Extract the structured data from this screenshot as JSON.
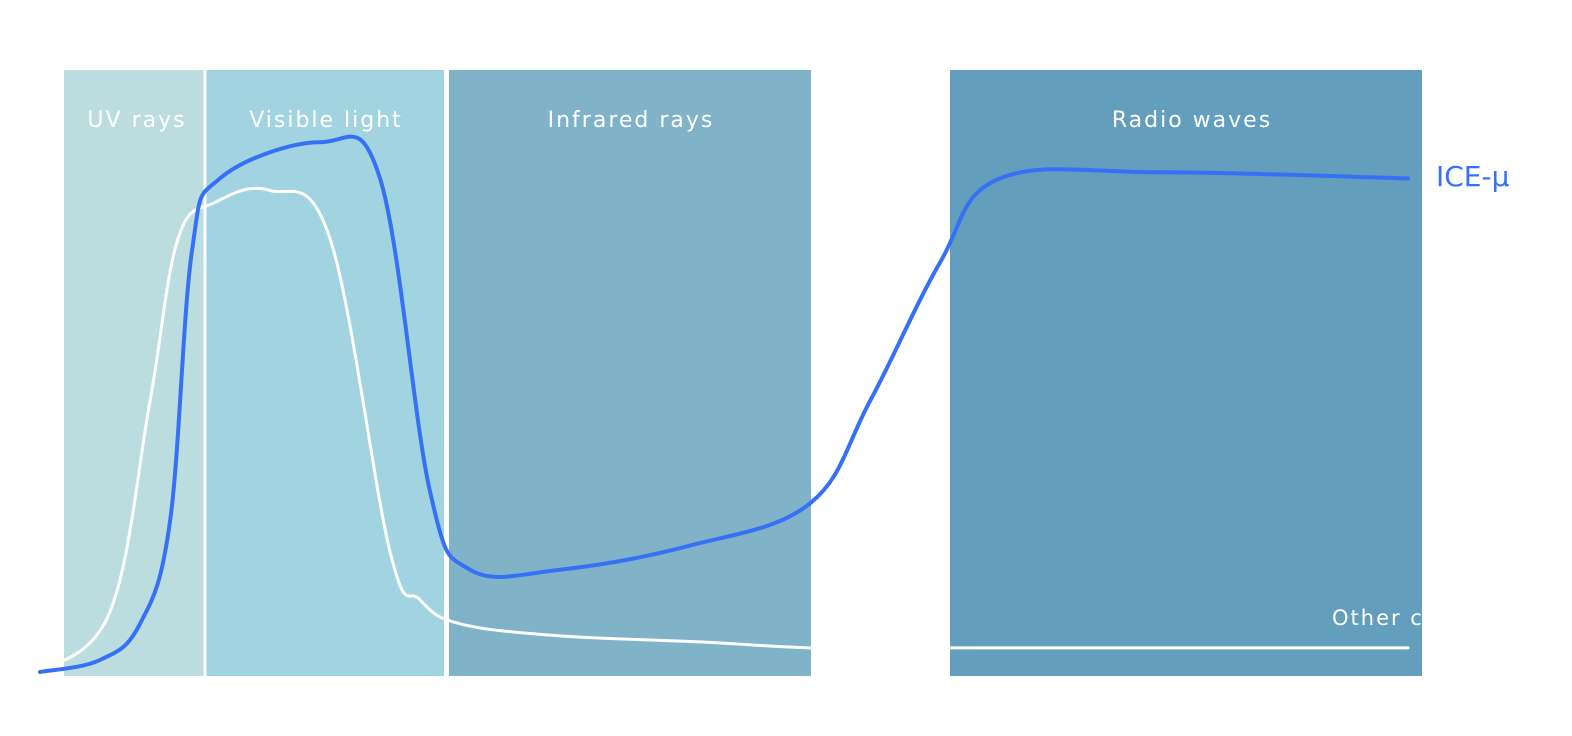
{
  "chart_data": {
    "type": "line",
    "bands": [
      {
        "label": "UV rays",
        "color": "#bcdde0"
      },
      {
        "label": "Visible light",
        "color": "#a2d3e1"
      },
      {
        "label": "Infrared rays",
        "color": "#80b2c8"
      },
      {
        "label": "Radio waves",
        "color": "#639ebc"
      }
    ],
    "series": [
      {
        "name": "ICE-μ",
        "color": "#3671f5",
        "stroke_width": 4,
        "values": [
          0.0,
          0.02,
          0.08,
          0.25,
          0.7,
          0.82,
          0.88,
          0.82,
          0.3,
          0.17,
          0.17,
          0.21,
          0.28,
          0.45,
          0.68,
          0.82,
          0.83,
          0.82
        ]
      },
      {
        "name": "Other",
        "color": "#ffffff",
        "stroke_width": 3,
        "values": [
          0.0,
          0.1,
          0.45,
          0.72,
          0.78,
          0.8,
          0.72,
          0.2,
          0.12,
          0.08,
          0.06,
          0.05,
          0.04,
          0.04,
          0.04,
          0.04,
          0.04,
          0.04
        ]
      }
    ],
    "labels": {
      "ice": "ICE-μ",
      "other": "Other c"
    }
  }
}
